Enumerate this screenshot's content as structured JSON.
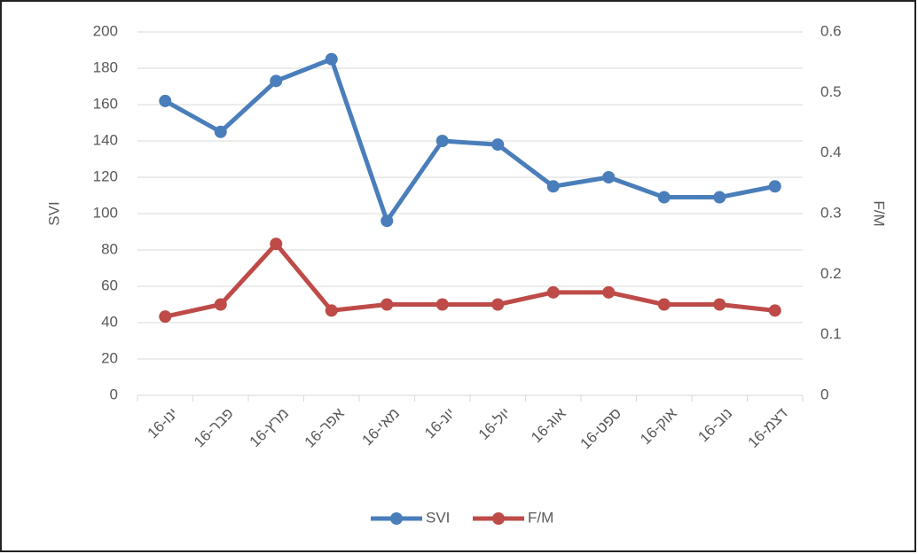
{
  "chart_data": {
    "type": "line",
    "categories": [
      "ינו-16",
      "פבר-16",
      "מרץ-16",
      "אפר-16",
      "מאי-16",
      "יונ-16",
      "יול-16",
      "אוג-16",
      "ספט-16",
      "אוק-16",
      "נוב-16",
      "דצמ-16"
    ],
    "series": [
      {
        "name": "SVI",
        "color": "#4a7ebb",
        "values": [
          162,
          145,
          173,
          185,
          96,
          140,
          138,
          115,
          120,
          109,
          109,
          115
        ]
      },
      {
        "name": "F/M",
        "color": "#be4b48",
        "axis": "y2",
        "values": [
          0.13,
          0.15,
          0.25,
          0.14,
          0.15,
          0.15,
          0.15,
          0.17,
          0.17,
          0.15,
          0.15,
          0.14
        ]
      }
    ],
    "ylabel": "SVI",
    "y2label": "F/M",
    "ylim": [
      0,
      200
    ],
    "yticks": [
      0,
      20,
      40,
      60,
      80,
      100,
      120,
      140,
      160,
      180,
      200
    ],
    "y2lim": [
      0,
      0.6
    ],
    "y2ticks": [
      0,
      0.1,
      0.2,
      0.3,
      0.4,
      0.5,
      0.6
    ],
    "grid": true,
    "legend": "bottom"
  }
}
